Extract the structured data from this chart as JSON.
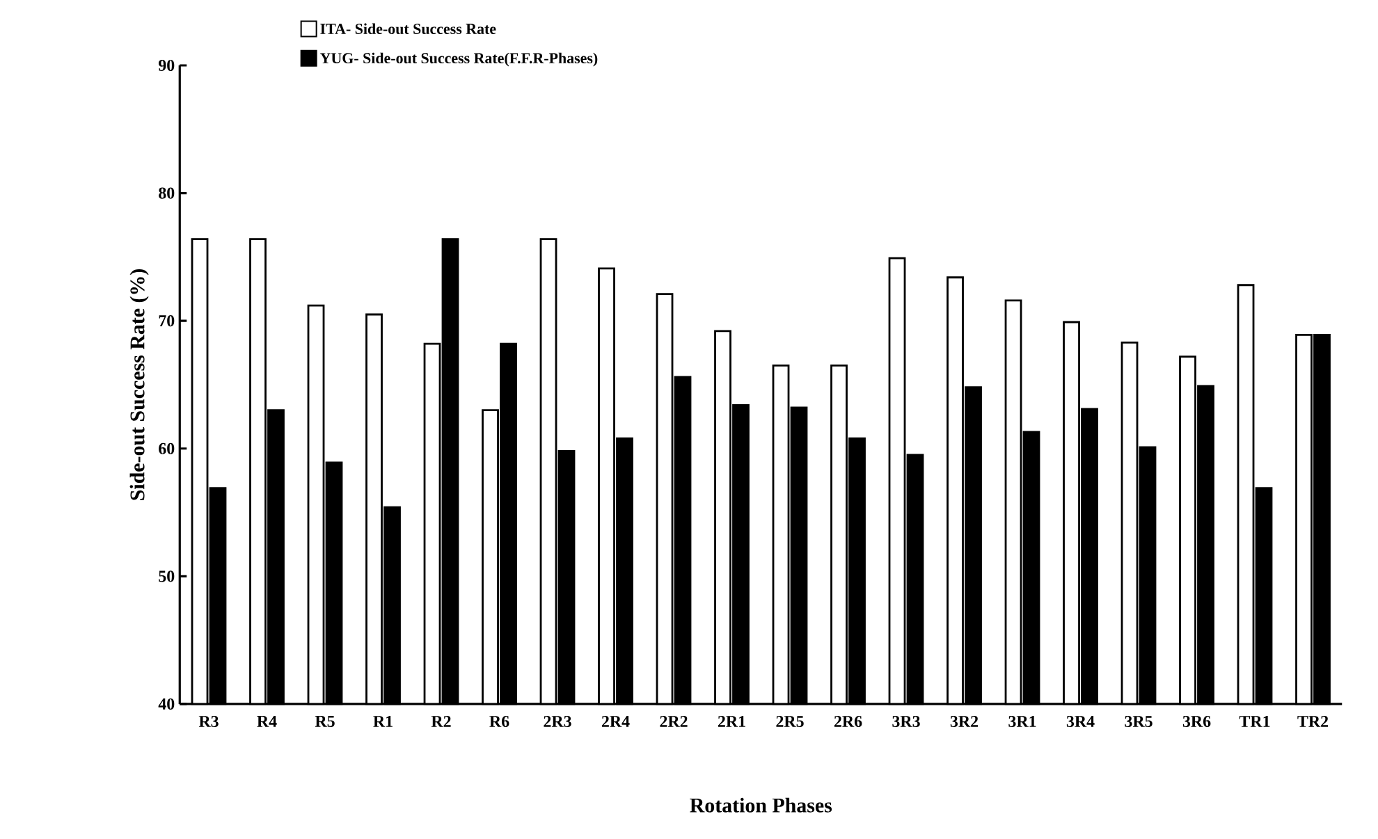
{
  "chart_data": {
    "type": "bar",
    "xlabel": "Rotation Phases",
    "ylabel": "Side-out Success Rate (%)",
    "categories": [
      "R3",
      "R4",
      "R5",
      "R1",
      "R2",
      "R6",
      "2R3",
      "2R4",
      "2R2",
      "2R1",
      "2R5",
      "2R6",
      "3R3",
      "3R2",
      "3R1",
      "3R4",
      "3R5",
      "3R6",
      "TR1",
      "TR2"
    ],
    "series": [
      {
        "name": "ITA- Side-out Success Rate",
        "color": "#ffffff",
        "values": [
          76.4,
          76.4,
          71.2,
          70.5,
          68.2,
          63.0,
          76.4,
          74.1,
          72.1,
          69.2,
          66.5,
          66.5,
          74.9,
          73.4,
          71.6,
          69.9,
          68.3,
          67.2,
          72.8,
          68.9
        ]
      },
      {
        "name": "YUG- Side-out Success Rate(F.F.R-Phases)",
        "color": "#000000",
        "values": [
          56.9,
          63.0,
          58.9,
          55.4,
          76.4,
          68.2,
          59.8,
          60.8,
          65.6,
          63.4,
          63.2,
          60.8,
          59.5,
          64.8,
          61.3,
          63.1,
          60.1,
          64.9,
          56.9,
          68.9
        ]
      }
    ],
    "ylim": [
      40,
      90
    ],
    "yticks": [
      40,
      50,
      60,
      70,
      80,
      90
    ],
    "grid": false,
    "legend": "top left"
  }
}
